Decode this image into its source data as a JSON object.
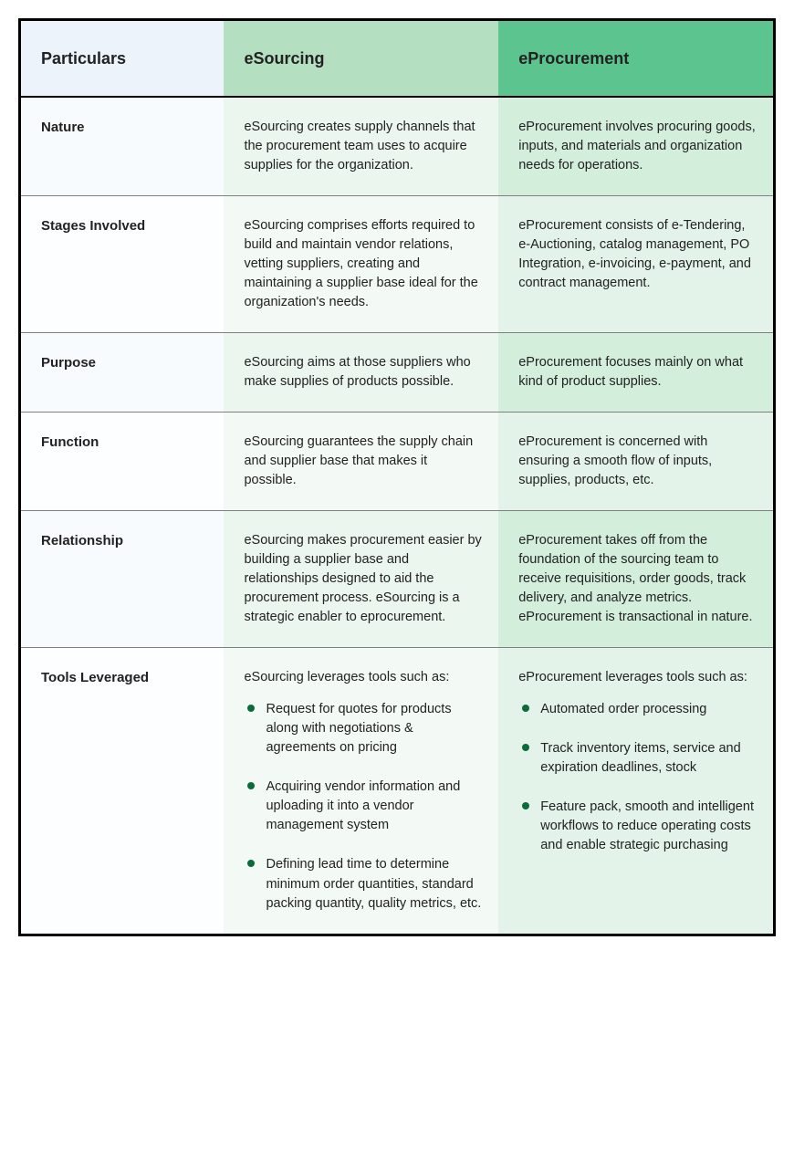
{
  "colors": {
    "border": "#000000",
    "row_divider": "#808080",
    "bullet": "#0b6b3a",
    "header_col1_bg": "#ecf3fb",
    "header_col2_bg": "#b4e0c1",
    "header_col3_bg": "#5cc48e",
    "odd_col1_bg": "#f8fbfe",
    "odd_col2_bg": "#ebf6ee",
    "odd_col3_bg": "#d4eedc",
    "even_col1_bg": "#fdfeff",
    "even_col2_bg": "#f3faf5",
    "even_col3_bg": "#e3f3e9"
  },
  "headers": {
    "col1": "Particulars",
    "col2": "eSourcing",
    "col3": "eProcurement"
  },
  "rows": [
    {
      "label": "Nature",
      "col2_text": "eSourcing creates supply channels that the procurement team uses to acquire supplies for the organization.",
      "col3_text": "eProcurement involves procuring goods, inputs, and materials and organization needs for operations."
    },
    {
      "label": "Stages Involved",
      "col2_text": "eSourcing comprises efforts required to build and maintain vendor relations, vetting suppliers, creating and maintaining a supplier base ideal for the organization's needs.",
      "col3_text": "eProcurement consists of e-Tendering, e-Auctioning, catalog management, PO Integration, e-invoicing, e-payment, and contract management."
    },
    {
      "label": "Purpose",
      "col2_text": "eSourcing aims at those suppliers who make supplies of products possible.",
      "col3_text": "eProcurement focuses mainly on what kind of product supplies."
    },
    {
      "label": "Function",
      "col2_text": "eSourcing guarantees the supply chain and supplier base that makes it possible.",
      "col3_text": "eProcurement is concerned with ensuring a smooth flow of inputs, supplies, products, etc."
    },
    {
      "label": "Relationship",
      "col2_text": "eSourcing makes procurement easier by building a supplier base and relationships designed to aid the procurement process. eSourcing is a strategic enabler to eprocurement.",
      "col3_text": "eProcurement takes off from the foundation of the sourcing team to receive requisitions, order goods, track delivery, and analyze metrics. eProcurement is transactional in nature."
    },
    {
      "label": "Tools Leveraged",
      "col2_text": "eSourcing leverages tools such as:",
      "col2_bullets": [
        "Request for quotes for products along with negotiations & agreements on pricing",
        "Acquiring vendor information and uploading it into a vendor management system",
        "Defining lead time to determine minimum order quantities, standard packing quantity, quality metrics, etc."
      ],
      "col3_text": "eProcurement leverages tools such as:",
      "col3_bullets": [
        "Automated order processing",
        "Track inventory items, service and expiration deadlines, stock",
        "Feature pack, smooth and intelligent workflows to reduce operating costs and enable strategic purchasing"
      ]
    }
  ]
}
